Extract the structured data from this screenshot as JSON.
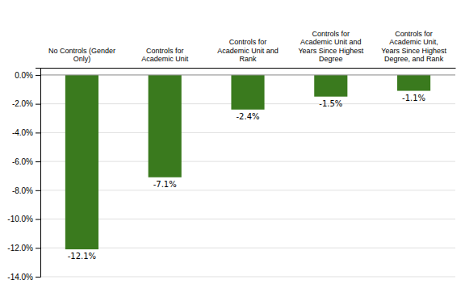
{
  "chart_data": {
    "type": "bar",
    "categories": [
      "No Controls (Gender\nOnly)",
      "Controls for\nAcademic Unit",
      "Controls for\nAcademic Unit and\nRank",
      "Controls for\nAcademic Unit and\nYears Since Highest\nDegree",
      "Controls for\nAcademic Unit,\nYears Since Highest\nDegree, and Rank"
    ],
    "values": [
      -12.1,
      -7.1,
      -2.4,
      -1.5,
      -1.1
    ],
    "value_labels": [
      "-12.1%",
      "-7.1%",
      "-2.4%",
      "-1.5%",
      "-1.1%"
    ],
    "data_labels": true,
    "color": "#3a7a1e",
    "ylim": [
      -14.0,
      0.5
    ],
    "yticks": [
      {
        "value": 0.0,
        "label": "0.0%"
      },
      {
        "value": -2.0,
        "label": "-2.0%"
      },
      {
        "value": -4.0,
        "label": "-4.0%"
      },
      {
        "value": -6.0,
        "label": "-6.0%"
      },
      {
        "value": -8.0,
        "label": "-8.0%"
      },
      {
        "value": -10.0,
        "label": "-10.0%"
      },
      {
        "value": -12.0,
        "label": "-12.0%"
      },
      {
        "value": -14.0,
        "label": "-14.0%"
      }
    ],
    "grid": true
  }
}
